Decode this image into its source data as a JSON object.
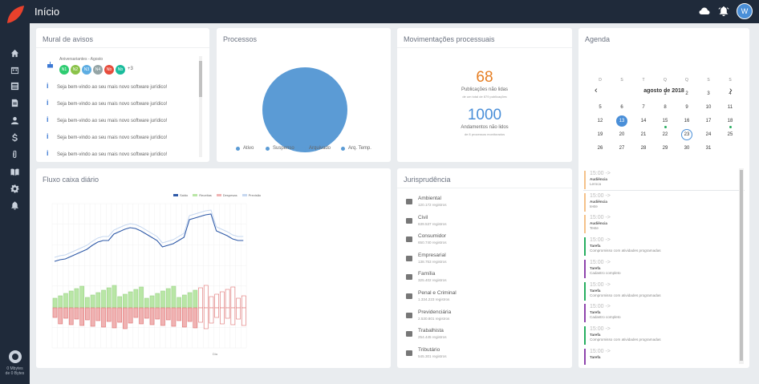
{
  "header": {
    "title": "Início"
  },
  "user": {
    "initial": "W"
  },
  "storage": {
    "line1": "0 Mbytes",
    "line2": "de 0 Bytes"
  },
  "sidebar": {
    "items": [
      "home-icon",
      "calendar-icon",
      "newspaper-icon",
      "file-icon",
      "user-icon",
      "dollar-icon",
      "paperclip-icon",
      "book-icon",
      "gear-icon",
      "bell-icon"
    ]
  },
  "mural": {
    "title": "Mural de avisos",
    "birthdays_label": "Aniversariantes - Agosto",
    "badges": [
      {
        "label": "N1",
        "color": "#2ecc71"
      },
      {
        "label": "N2",
        "color": "#8bc34a"
      },
      {
        "label": "N3",
        "color": "#5dade2"
      },
      {
        "label": "N4",
        "color": "#95a5a6"
      },
      {
        "label": "Nb",
        "color": "#e74c3c"
      },
      {
        "label": "Nb",
        "color": "#1abc9c"
      }
    ],
    "more": "+3",
    "notices": [
      "Seja bem-vindo ao seu mais novo software jurídico!",
      "Seja bem-vindo ao seu mais novo software jurídico!",
      "Seja bem-vindo ao seu mais novo software jurídico!",
      "Seja bem-vindo ao seu mais novo software jurídico!",
      "Seja bem-vindo ao seu mais novo software jurídico!"
    ]
  },
  "processos": {
    "title": "Processos",
    "legend": [
      "Ativo",
      "Suspenso",
      "Arquivado",
      "Arq. Temp."
    ],
    "color": "#5b9bd5"
  },
  "movimentacoes": {
    "title": "Movimentações processuais",
    "pub_value": "68",
    "pub_label": "Publicações não lidas",
    "pub_sub": "de um total de 879 publicações",
    "and_value": "1000",
    "and_label": "Andamentos não lidos",
    "and_sub": "de 8 processos monitorados"
  },
  "agenda": {
    "title": "Agenda",
    "month": "agosto de 2018",
    "weekdays": [
      "D",
      "S",
      "T",
      "Q",
      "Q",
      "S",
      "S"
    ],
    "weeks": [
      [
        "",
        "",
        "",
        "1",
        "2",
        "3",
        "4"
      ],
      [
        "5",
        "6",
        "7",
        "8",
        "9",
        "10",
        "11"
      ],
      [
        "12",
        "13",
        "14",
        "15",
        "16",
        "17",
        "18"
      ],
      [
        "19",
        "20",
        "21",
        "22",
        "23",
        "24",
        "25"
      ],
      [
        "26",
        "27",
        "28",
        "29",
        "30",
        "31",
        ""
      ]
    ],
    "today": "13",
    "selected": "23",
    "dots": [
      "15",
      "18"
    ],
    "events": [
      {
        "time": "15:00 ->",
        "kind": "Audiência",
        "desc": "Leroca",
        "color": "#f5c28a"
      },
      {
        "time": "15:00 ->",
        "kind": "Audiência",
        "desc": "teste",
        "color": "#f5c28a"
      },
      {
        "time": "15:00 ->",
        "kind": "Audiência",
        "desc": "Teste",
        "color": "#f5c28a"
      },
      {
        "time": "15:00 ->",
        "kind": "Tarefa",
        "desc": "Compromisso com atividades programadas",
        "color": "#27ae60"
      },
      {
        "time": "15:00 ->",
        "kind": "Tarefa",
        "desc": "Cadastro completo",
        "color": "#8e44ad"
      },
      {
        "time": "15:00 ->",
        "kind": "Tarefa",
        "desc": "Compromisso com atividades programadas",
        "color": "#27ae60"
      },
      {
        "time": "15:00 ->",
        "kind": "Tarefa",
        "desc": "Cadastro completo",
        "color": "#8e44ad"
      },
      {
        "time": "15:00 ->",
        "kind": "Tarefa",
        "desc": "Compromisso com atividades programadas",
        "color": "#27ae60"
      },
      {
        "time": "15:00 ->",
        "kind": "Tarefa",
        "desc": "",
        "color": "#8e44ad"
      }
    ]
  },
  "fluxo": {
    "title": "Fluxo caixa diário",
    "legend": [
      {
        "label": "Saldo",
        "color": "#2f5aa8"
      },
      {
        "label": "Receitas",
        "color": "#b9e6a6"
      },
      {
        "label": "Despesas",
        "color": "#f0b3b3"
      },
      {
        "label": "Previsão",
        "color": "#c7d8f0"
      }
    ],
    "xlabel": "Dia"
  },
  "juris": {
    "title": "Jurisprudência",
    "items": [
      {
        "name": "Ambiental",
        "count": "120.172 registros",
        "icon": "tree-icon"
      },
      {
        "name": "Civil",
        "count": "639.537 registros",
        "icon": "person-icon"
      },
      {
        "name": "Consumidor",
        "count": "650.740 registros",
        "icon": "building-icon"
      },
      {
        "name": "Empresarial",
        "count": "138.753 registros",
        "icon": "cart-icon"
      },
      {
        "name": "Família",
        "count": "325.402 registros",
        "icon": "family-icon"
      },
      {
        "name": "Penal e Criminal",
        "count": "1.334.223 registros",
        "icon": "handcuffs-icon"
      },
      {
        "name": "Previdenciária",
        "count": "2.530.801 registros",
        "icon": "elder-icon"
      },
      {
        "name": "Trabalhista",
        "count": "254.445 registros",
        "icon": "worker-icon"
      },
      {
        "name": "Tributário",
        "count": "545.301 registros",
        "icon": "piggy-icon"
      }
    ]
  }
}
